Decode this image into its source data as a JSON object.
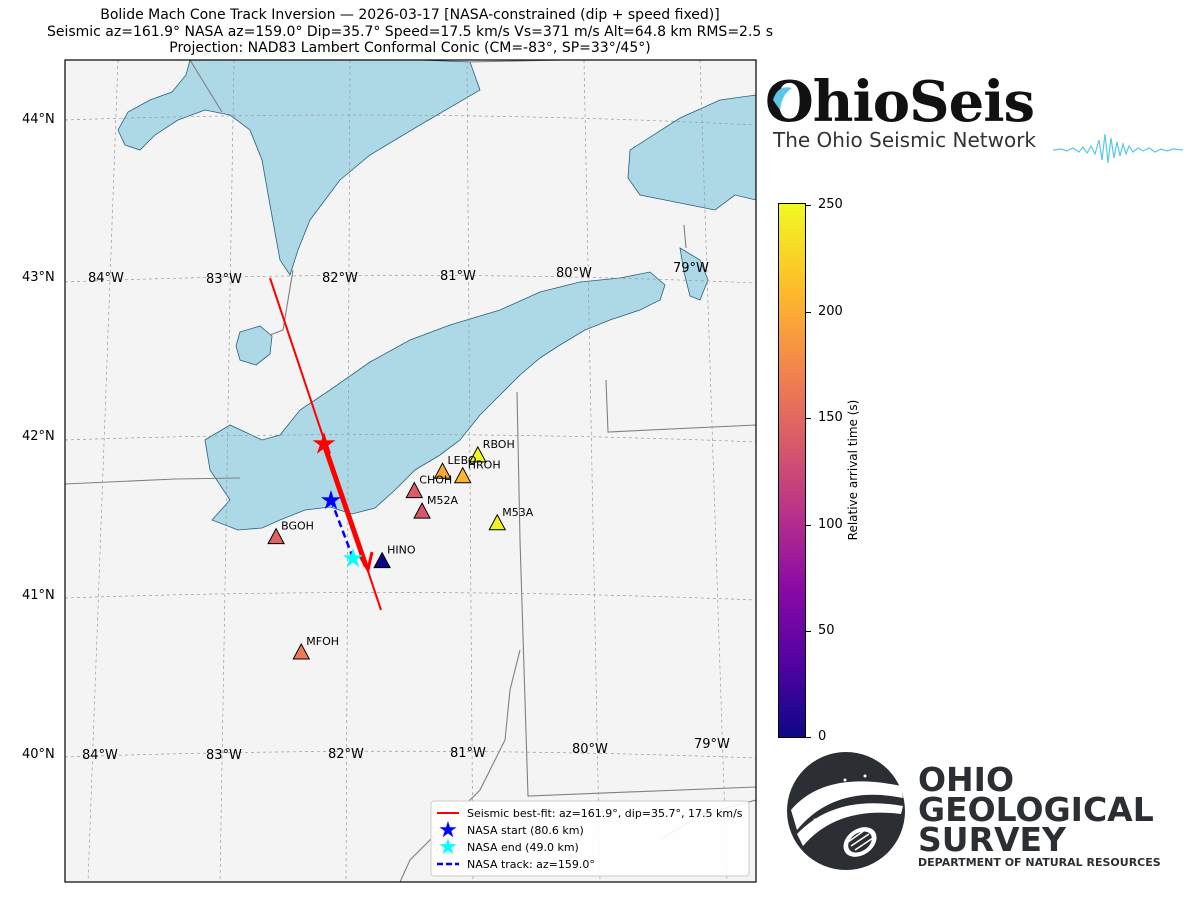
{
  "title": {
    "line1": "Bolide Mach Cone Track Inversion  —  2026-03-17  [NASA-constrained (dip + speed fixed)]",
    "line2": "Seismic az=161.9°  NASA az=159.0°   Dip=35.7°   Speed=17.5 km/s   Vs=371 m/s   Alt=64.8 km   RMS=2.5 s",
    "line3": "Projection: NAD83 Lambert Conformal Conic  (CM=-83°, SP=33°/45°)"
  },
  "map": {
    "lat_labels": [
      "44°N",
      "43°N",
      "42°N",
      "41°N",
      "40°N"
    ],
    "lon_labels_top": [
      "84°W",
      "83°W",
      "82°W",
      "81°W",
      "80°W",
      "79°W"
    ],
    "lon_labels_bottom": [
      "84°W",
      "83°W",
      "82°W",
      "81°W",
      "80°W",
      "79°W"
    ],
    "colors": {
      "water": "#add8e6",
      "land": "#f4f4f4",
      "border": "#808080",
      "seismic_track": "#ff0000",
      "nasa_track": "#0000ff",
      "nasa_end": "#00ffff"
    },
    "stations": [
      {
        "name": "RBOH",
        "lat": 41.88,
        "lon": -80.93,
        "rel_time": 250
      },
      {
        "name": "LEBO",
        "lat": 41.78,
        "lon": -81.22,
        "rel_time": 195
      },
      {
        "name": "HROH",
        "lat": 41.75,
        "lon": -81.05,
        "rel_time": 205
      },
      {
        "name": "CHOH",
        "lat": 41.66,
        "lon": -81.45,
        "rel_time": 140
      },
      {
        "name": "M52A",
        "lat": 41.53,
        "lon": -81.38,
        "rel_time": 135
      },
      {
        "name": "M53A",
        "lat": 41.45,
        "lon": -80.75,
        "rel_time": 245
      },
      {
        "name": "BGOH",
        "lat": 41.38,
        "lon": -82.59,
        "rel_time": 145
      },
      {
        "name": "HINO",
        "lat": 41.22,
        "lon": -81.7,
        "rel_time": 0
      },
      {
        "name": "MFOH",
        "lat": 40.65,
        "lon": -82.35,
        "rel_time": 165
      }
    ],
    "legend": {
      "seismic": "Seismic best-fit: az=161.9°, dip=35.7°, 17.5 km/s",
      "nasa_start": "NASA start (80.6 km)",
      "nasa_end": "NASA end (49.0 km)",
      "nasa_track": "NASA track: az=159.0°"
    }
  },
  "colorbar": {
    "label": "Relative arrival time (s)",
    "ticks": [
      "250",
      "200",
      "150",
      "100",
      "50",
      "0"
    ],
    "colormap": "plasma"
  },
  "logos": {
    "ohioseis_name": "OhioSeis",
    "ohioseis_sub": "The Ohio Seismic Network",
    "ogs_line1": "OHIO",
    "ogs_line2": "GEOLOGICAL",
    "ogs_line3": "SURVEY",
    "ogs_dept": "DEPARTMENT OF NATURAL RESOURCES"
  }
}
